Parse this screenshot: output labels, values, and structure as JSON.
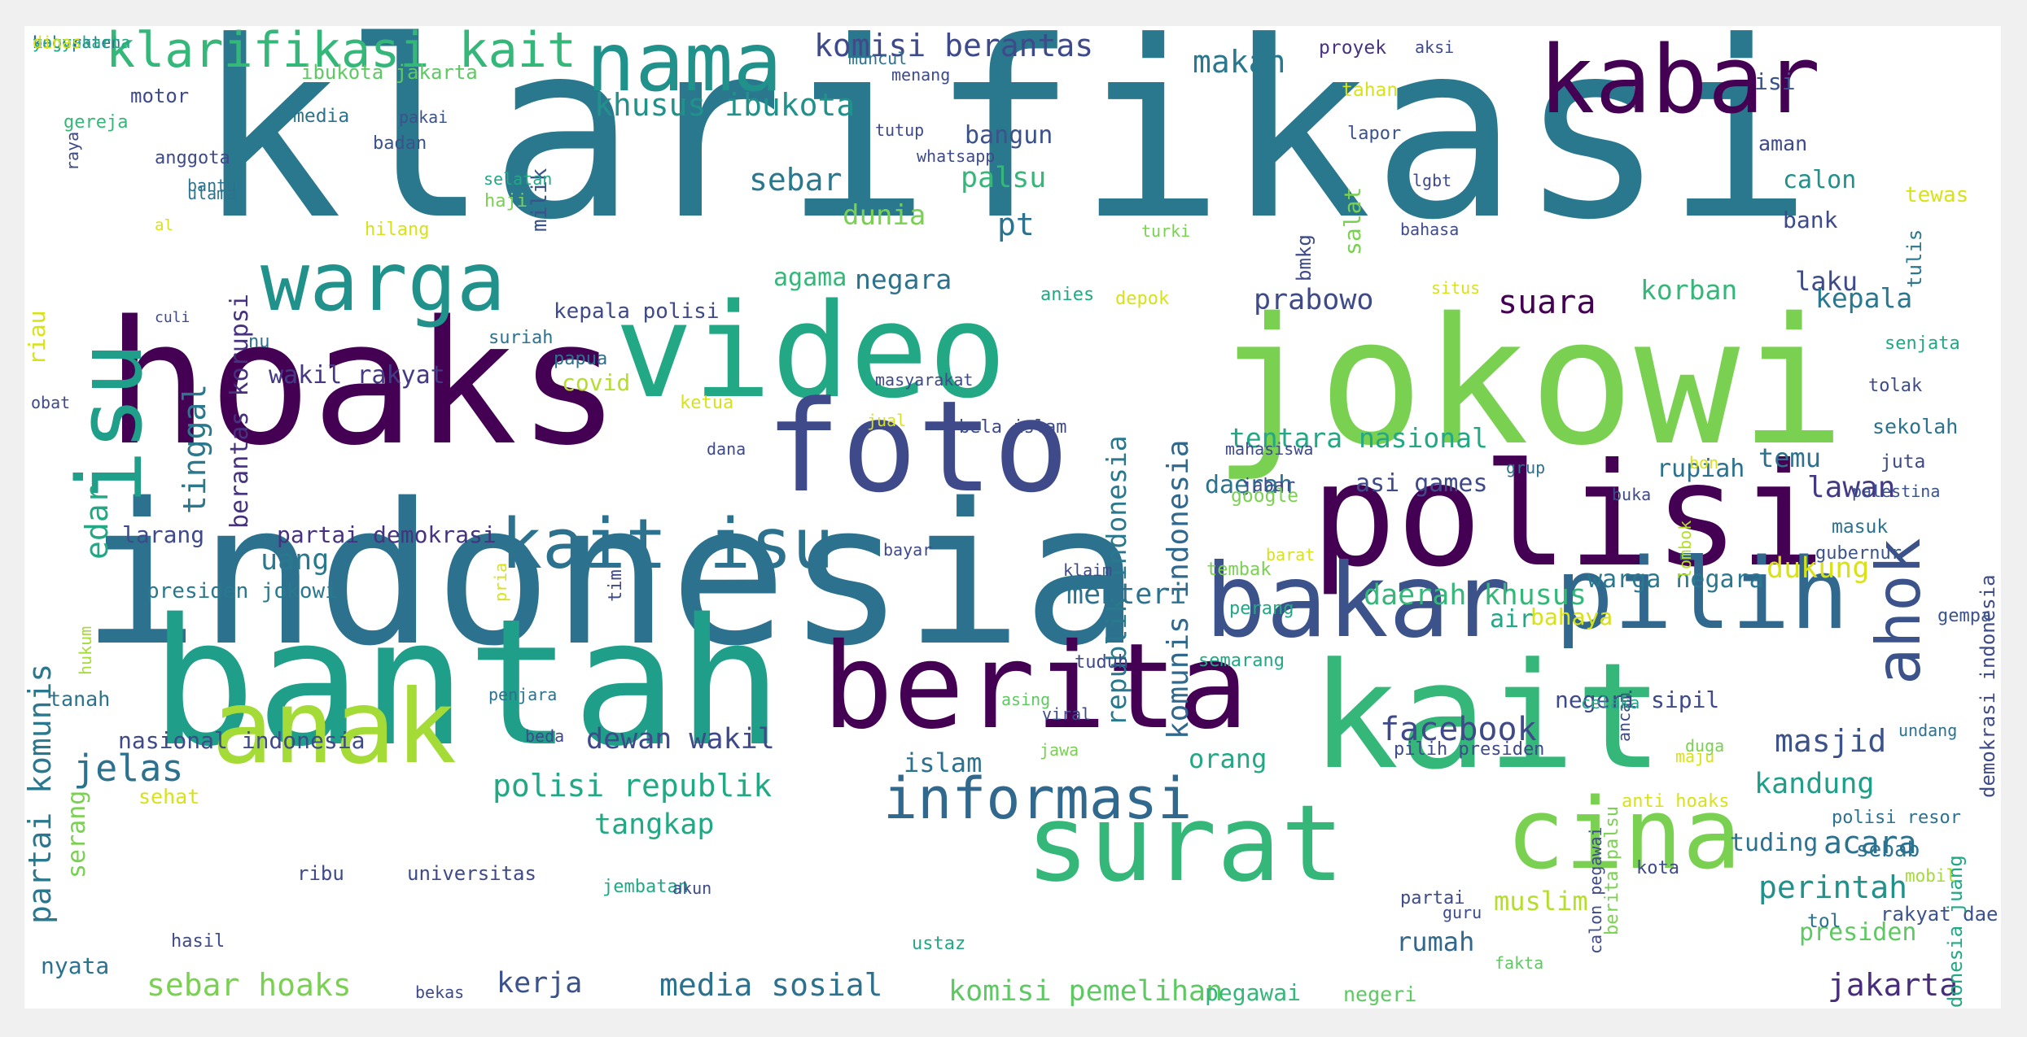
{
  "palette": {
    "page_background": "#f0f0f0",
    "cloud_background": "#ffffff",
    "colormap": "viridis"
  },
  "words": [
    {
      "text": "klarifikasi",
      "color": "#2a788e"
    },
    {
      "text": "hoaks",
      "color": "#440154"
    },
    {
      "text": "indonesia",
      "color": "#2c728e"
    },
    {
      "text": "bantah",
      "color": "#1f9e89"
    },
    {
      "text": "jokowi",
      "color": "#7ad151"
    },
    {
      "text": "kait",
      "color": "#35b779"
    },
    {
      "text": "polisi",
      "color": "#440154"
    },
    {
      "text": "video",
      "color": "#22a884"
    },
    {
      "text": "foto",
      "color": "#3e4a89"
    },
    {
      "text": "berita",
      "color": "#440154"
    },
    {
      "text": "anak",
      "color": "#a5db36"
    },
    {
      "text": "surat",
      "color": "#35b779"
    },
    {
      "text": "cina",
      "color": "#7ad151"
    },
    {
      "text": "bakar",
      "color": "#3b528b"
    },
    {
      "text": "pilih",
      "color": "#31688e"
    },
    {
      "text": "kabar",
      "color": "#440154"
    },
    {
      "text": "isu",
      "color": "#1f9e89"
    },
    {
      "text": "nama",
      "color": "#21918c"
    },
    {
      "text": "warga",
      "color": "#21918c"
    },
    {
      "text": "kait isu",
      "color": "#2c728e"
    },
    {
      "text": "informasi",
      "color": "#31688e"
    },
    {
      "text": "ahok",
      "color": "#3b528b"
    },
    {
      "text": "klarifikasi kait",
      "color": "#35b779"
    },
    {
      "text": "komisi berantas",
      "color": "#3e4a89"
    },
    {
      "text": "khusus ibukota",
      "color": "#21918c"
    },
    {
      "text": "makan",
      "color": "#2a788e"
    },
    {
      "text": "tinggal",
      "color": "#2a788e"
    },
    {
      "text": "berantas korupsi",
      "color": "#46327e"
    },
    {
      "text": "partai komunis",
      "color": "#2a788e"
    },
    {
      "text": "edar",
      "color": "#22a884"
    },
    {
      "text": "wakil rakyat",
      "color": "#443983"
    },
    {
      "text": "jelas",
      "color": "#2c728e"
    },
    {
      "text": "uang",
      "color": "#2a788e"
    },
    {
      "text": "larang",
      "color": "#3e4a89"
    },
    {
      "text": "partai demokrasi",
      "color": "#46327e"
    },
    {
      "text": "presiden jokowi",
      "color": "#2a788e"
    },
    {
      "text": "sebar",
      "color": "#2a788e"
    },
    {
      "text": "pt",
      "color": "#2c728e"
    },
    {
      "text": "dunia",
      "color": "#7ad151"
    },
    {
      "text": "agama",
      "color": "#35b779"
    },
    {
      "text": "negara",
      "color": "#2c728e"
    },
    {
      "text": "kepala polisi",
      "color": "#3e4a89"
    },
    {
      "text": "covid",
      "color": "#b5de2b"
    },
    {
      "text": "palsu",
      "color": "#35b779"
    },
    {
      "text": "bangun",
      "color": "#3b528b"
    },
    {
      "text": "milik",
      "color": "#3b528b"
    },
    {
      "text": "republik indonesia",
      "color": "#2a788e"
    },
    {
      "text": "komunis indonesia",
      "color": "#31688e"
    },
    {
      "text": "prabowo",
      "color": "#3e4a89"
    },
    {
      "text": "suara",
      "color": "#440154"
    },
    {
      "text": "laku",
      "color": "#3e4a89"
    },
    {
      "text": "korban",
      "color": "#35b779"
    },
    {
      "text": "kepala",
      "color": "#2a788e"
    },
    {
      "text": "tentara nasional",
      "color": "#22a884"
    },
    {
      "text": "rupiah",
      "color": "#2c728e"
    },
    {
      "text": "temu",
      "color": "#2c728e"
    },
    {
      "text": "lawan",
      "color": "#443983"
    },
    {
      "text": "daerah",
      "color": "#2c728e"
    },
    {
      "text": "asi games",
      "color": "#3e4a89"
    },
    {
      "text": "menteri",
      "color": "#2c728e"
    },
    {
      "text": "daerah khusus",
      "color": "#35b779"
    },
    {
      "text": "dukung",
      "color": "#d8e219"
    },
    {
      "text": "warga negara",
      "color": "#2a788e"
    },
    {
      "text": "air",
      "color": "#22a884"
    },
    {
      "text": "bahaya",
      "color": "#d8e219"
    },
    {
      "text": "facebook",
      "color": "#3e4a89"
    },
    {
      "text": "masjid",
      "color": "#3b528b"
    },
    {
      "text": "kandung",
      "color": "#1f9e89"
    },
    {
      "text": "acara",
      "color": "#2c728e"
    },
    {
      "text": "perintah",
      "color": "#21918c"
    },
    {
      "text": "presiden",
      "color": "#5ec962"
    },
    {
      "text": "jakarta",
      "color": "#472d7b"
    },
    {
      "text": "rumah",
      "color": "#31688e"
    },
    {
      "text": "muslim",
      "color": "#b5de2b"
    },
    {
      "text": "negeri sipil",
      "color": "#3e4a89"
    },
    {
      "text": "tuding",
      "color": "#2c728e"
    },
    {
      "text": "orang",
      "color": "#22a884"
    },
    {
      "text": "islam",
      "color": "#2c728e"
    },
    {
      "text": "dewan wakil",
      "color": "#3e4a89"
    },
    {
      "text": "polisi republik",
      "color": "#22a884"
    },
    {
      "text": "nasional indonesia",
      "color": "#3e4a89"
    },
    {
      "text": "tangkap",
      "color": "#22a884"
    },
    {
      "text": "media sosial",
      "color": "#2c728e"
    },
    {
      "text": "sebar hoaks",
      "color": "#7ad151"
    },
    {
      "text": "kerja",
      "color": "#3b528b"
    },
    {
      "text": "komisi pemelihan",
      "color": "#5ec962"
    },
    {
      "text": "pegawai",
      "color": "#35b779"
    },
    {
      "text": "negeri",
      "color": "#5ec962"
    },
    {
      "text": "nyata",
      "color": "#2c728e"
    },
    {
      "text": "ribu",
      "color": "#3e4a89"
    },
    {
      "text": "universitas",
      "color": "#3e4a89"
    },
    {
      "text": "tanah",
      "color": "#2c728e"
    },
    {
      "text": "serang",
      "color": "#7ad151"
    },
    {
      "text": "sehat",
      "color": "#d8e219"
    },
    {
      "text": "calon",
      "color": "#21918c"
    },
    {
      "text": "bank",
      "color": "#3e4a89"
    },
    {
      "text": "sebab",
      "color": "#2c728e"
    },
    {
      "text": "rakyat daerah",
      "color": "#3b528b"
    },
    {
      "text": "isi",
      "color": "#3b528b"
    },
    {
      "text": "aman",
      "color": "#3e4a89"
    },
    {
      "text": "tewas",
      "color": "#d8e219"
    },
    {
      "text": "tulis",
      "color": "#2a788e"
    },
    {
      "text": "senjata",
      "color": "#22a884"
    },
    {
      "text": "tolak",
      "color": "#3e4a89"
    },
    {
      "text": "sekolah",
      "color": "#2c728e"
    },
    {
      "text": "juta",
      "color": "#3e4a89"
    },
    {
      "text": "palestina",
      "color": "#3b528b"
    },
    {
      "text": "masuk",
      "color": "#2c728e"
    },
    {
      "text": "gubernur",
      "color": "#3b528b"
    },
    {
      "text": "demokrasi indonesia",
      "color": "#3e4a89"
    },
    {
      "text": "gempa",
      "color": "#3b528b"
    },
    {
      "text": "indonesia juang",
      "color": "#22a884"
    },
    {
      "text": "mobil",
      "color": "#a5db36"
    },
    {
      "text": "polisi resor",
      "color": "#2c728e"
    },
    {
      "text": "tol",
      "color": "#2c728e"
    },
    {
      "text": "kota",
      "color": "#3e4a89"
    },
    {
      "text": "tahan",
      "color": "#d8e219"
    },
    {
      "text": "lapor",
      "color": "#3b528b"
    },
    {
      "text": "bmkg",
      "color": "#3e4a89"
    },
    {
      "text": "salat",
      "color": "#7ad151"
    },
    {
      "text": "proyek",
      "color": "#46327e"
    },
    {
      "text": "aksi",
      "color": "#3e4a89"
    },
    {
      "text": "riau",
      "color": "#d8e219"
    },
    {
      "text": "motor",
      "color": "#3e4a89"
    },
    {
      "text": "ibukota jakarta",
      "color": "#5ec962"
    },
    {
      "text": "media",
      "color": "#2c728e"
    },
    {
      "text": "pakai",
      "color": "#3b528b"
    },
    {
      "text": "badan",
      "color": "#3b528b"
    },
    {
      "text": "haji",
      "color": "#7ad151"
    },
    {
      "text": "selatan",
      "color": "#22a884"
    },
    {
      "text": "gereja",
      "color": "#35b779"
    },
    {
      "text": "anggota",
      "color": "#3e4a89"
    },
    {
      "text": "bantu",
      "color": "#2c728e"
    },
    {
      "text": "ulama",
      "color": "#2c728e"
    },
    {
      "text": "al",
      "color": "#d8e219"
    },
    {
      "text": "raya",
      "color": "#3e4a89"
    },
    {
      "text": "muncul",
      "color": "#2c728e"
    },
    {
      "text": "menang",
      "color": "#3e4a89"
    },
    {
      "text": "tutup",
      "color": "#3e4a89"
    },
    {
      "text": "whatsapp",
      "color": "#3e4a89"
    },
    {
      "text": "lgbt",
      "color": "#3e4a89"
    },
    {
      "text": "hilang",
      "color": "#d8e219"
    },
    {
      "text": "turki",
      "color": "#7ad151"
    },
    {
      "text": "situs",
      "color": "#d8e219"
    },
    {
      "text": "bahasa",
      "color": "#3e4a89"
    },
    {
      "text": "anies",
      "color": "#22a884"
    },
    {
      "text": "depok",
      "color": "#d8e219"
    },
    {
      "text": "nu",
      "color": "#2c728e"
    },
    {
      "text": "suriah",
      "color": "#2c728e"
    },
    {
      "text": "papua",
      "color": "#2c728e"
    },
    {
      "text": "masyarakat",
      "color": "#3e4a89"
    },
    {
      "text": "bela islam",
      "color": "#3e4a89"
    },
    {
      "text": "ketua",
      "color": "#d8e219"
    },
    {
      "text": "jual",
      "color": "#d8e219"
    },
    {
      "text": "dana",
      "color": "#3e4a89"
    },
    {
      "text": "mahasiswa",
      "color": "#3e4a89"
    },
    {
      "text": "jabar",
      "color": "#3e4a89"
    },
    {
      "text": "grup",
      "color": "#2c728e"
    },
    {
      "text": "buka",
      "color": "#3e4a89"
    },
    {
      "text": "bon",
      "color": "#d8e219"
    },
    {
      "text": "lombok",
      "color": "#b5de2b"
    },
    {
      "text": "google",
      "color": "#7ad151"
    },
    {
      "text": "barat",
      "color": "#d8e219"
    },
    {
      "text": "tembak",
      "color": "#7ad151"
    },
    {
      "text": "bayar",
      "color": "#3e4a89"
    },
    {
      "text": "klaim",
      "color": "#3e4a89"
    },
    {
      "text": "tim",
      "color": "#3e4a89"
    },
    {
      "text": "perang",
      "color": "#22a884"
    },
    {
      "text": "semarang",
      "color": "#22a884"
    },
    {
      "text": "tuduh",
      "color": "#3e4a89"
    },
    {
      "text": "asing",
      "color": "#5ec962"
    },
    {
      "text": "penjara",
      "color": "#2c728e"
    },
    {
      "text": "viral",
      "color": "#3e4a89"
    },
    {
      "text": "obat",
      "color": "#3e4a89"
    },
    {
      "text": "culi",
      "color": "#3e4a89"
    },
    {
      "text": "hukum",
      "color": "#a5db36"
    },
    {
      "text": "pria",
      "color": "#d8e219"
    },
    {
      "text": "beda",
      "color": "#3e4a89"
    },
    {
      "text": "jawa",
      "color": "#7ad151"
    },
    {
      "text": "calon pegawai",
      "color": "#3e4a89"
    },
    {
      "text": "berita palsu",
      "color": "#7ad151"
    },
    {
      "text": "ancam",
      "color": "#3e4a89"
    },
    {
      "text": "celaka",
      "color": "#22a884"
    },
    {
      "text": "pilih presiden",
      "color": "#3e4a89"
    },
    {
      "text": "duga",
      "color": "#7ad151"
    },
    {
      "text": "undang",
      "color": "#2c728e"
    },
    {
      "text": "maju",
      "color": "#d8e219"
    },
    {
      "text": "anti hoaks",
      "color": "#d8e219"
    },
    {
      "text": "jembatan",
      "color": "#22a884"
    },
    {
      "text": "akun",
      "color": "#3e4a89"
    },
    {
      "text": "partai",
      "color": "#3e4a89"
    },
    {
      "text": "guru",
      "color": "#3e4a89"
    },
    {
      "text": "fakta",
      "color": "#5ec962"
    },
    {
      "text": "ustaz",
      "color": "#22a884"
    },
    {
      "text": "hasil",
      "color": "#3e4a89"
    },
    {
      "text": "bekas",
      "color": "#3e4a89"
    },
    {
      "text": "bogor",
      "color": "#3e4a89"
    },
    {
      "text": "kabupaten",
      "color": "#2c728e"
    },
    {
      "text": "yogyakarta",
      "color": "#22a884"
    },
    {
      "text": "dinas",
      "color": "#d8e219"
    }
  ]
}
